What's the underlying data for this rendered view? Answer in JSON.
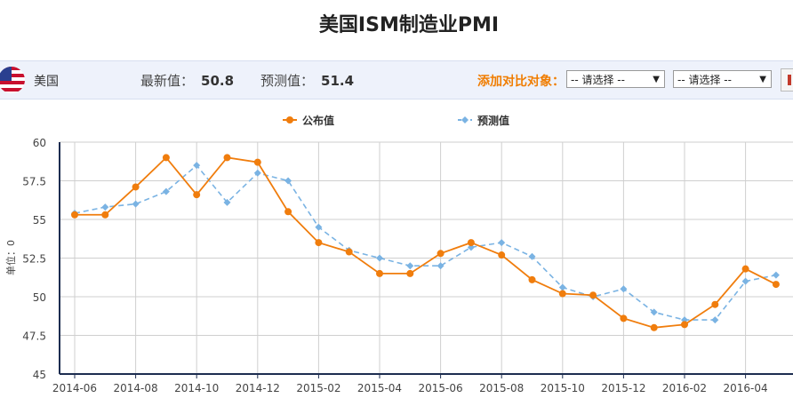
{
  "header": {
    "title": "美国ISM制造业PMI"
  },
  "info_bar": {
    "country": "美国",
    "latest_label": "最新值：",
    "latest_value": "50.8",
    "forecast_label": "预测值：",
    "forecast_value": "51.4",
    "compare_label": "添加对比对象：",
    "select1": "-- 请选择 --",
    "select2": "-- 请选择 --"
  },
  "colors": {
    "published": "#f07d0d",
    "forecast": "#7ab3e3",
    "axis": "#1d2d50",
    "grid": "#cfcfcf"
  },
  "chart_data": {
    "type": "line",
    "x": [
      "2014-06",
      "2014-07",
      "2014-08",
      "2014-09",
      "2014-10",
      "2014-11",
      "2014-12",
      "2015-01",
      "2015-02",
      "2015-03",
      "2015-04",
      "2015-05",
      "2015-06",
      "2015-07",
      "2015-08",
      "2015-09",
      "2015-10",
      "2015-11",
      "2015-12",
      "2016-01",
      "2016-02",
      "2016-03",
      "2016-04",
      "2016-05"
    ],
    "x_tick_labels": [
      "2014-06",
      "2014-08",
      "2014-10",
      "2014-12",
      "2015-02",
      "2015-04",
      "2015-06",
      "2015-08",
      "2015-10",
      "2015-12",
      "2016-02",
      "2016-04"
    ],
    "series": [
      {
        "name": "公布值",
        "style": "solid",
        "marker": "circle",
        "color": "#f07d0d",
        "values": [
          55.3,
          55.3,
          57.1,
          59.0,
          56.6,
          59.0,
          58.7,
          55.5,
          53.5,
          52.9,
          51.5,
          51.5,
          52.8,
          53.5,
          52.7,
          51.1,
          50.2,
          50.1,
          48.6,
          48.0,
          48.2,
          49.5,
          51.8,
          50.8
        ]
      },
      {
        "name": "预测值",
        "style": "dashed",
        "marker": "diamond",
        "color": "#7ab3e3",
        "values": [
          55.4,
          55.8,
          56.0,
          56.8,
          58.5,
          56.1,
          58.0,
          57.5,
          54.5,
          53.0,
          52.5,
          52.0,
          52.0,
          53.2,
          53.5,
          52.6,
          50.6,
          50.0,
          50.5,
          49.0,
          48.5,
          48.5,
          51.0,
          51.4
        ]
      }
    ],
    "ylabel": "单位：0",
    "y_ticks": [
      "60",
      "57.5",
      "55",
      "52.5",
      "50",
      "47.5",
      "45"
    ],
    "ylim": [
      45,
      60
    ],
    "grid": true,
    "legend_position": "top"
  }
}
